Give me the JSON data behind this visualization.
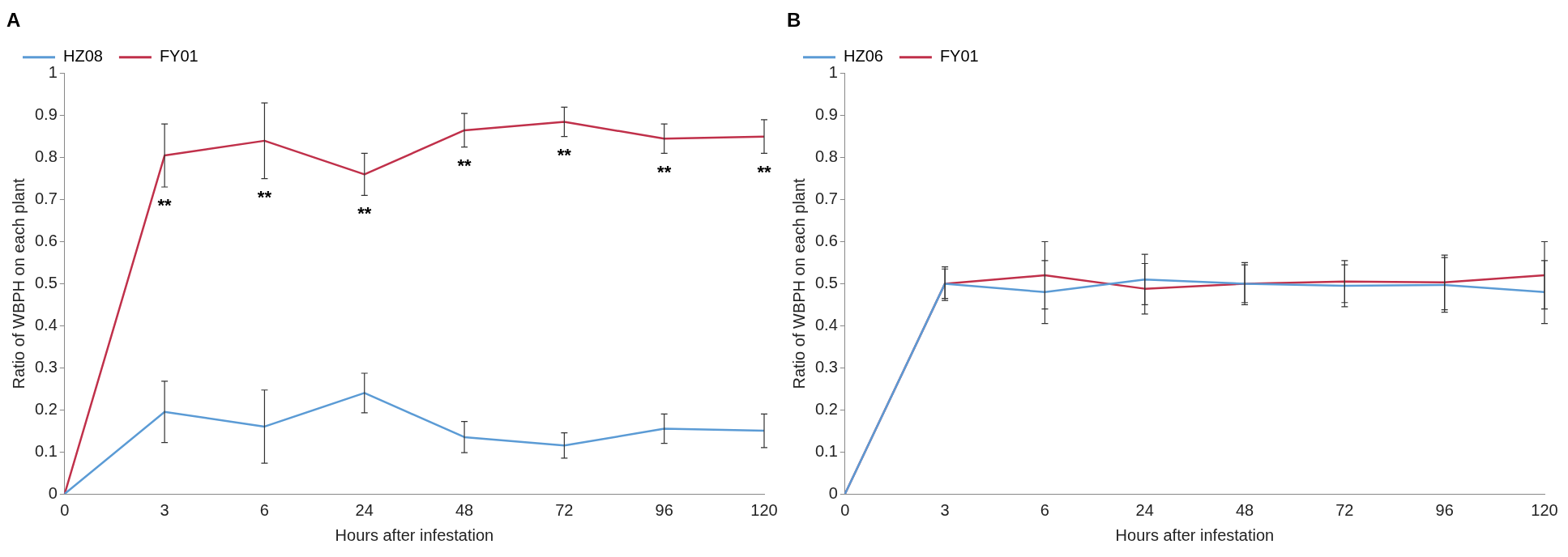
{
  "chart_data": [
    {
      "type": "line",
      "title": "A",
      "xlabel": "Hours after infestation",
      "ylabel": "Ratio of WBPH on each plant",
      "categories": [
        "0",
        "3",
        "6",
        "24",
        "48",
        "72",
        "96",
        "120"
      ],
      "ylim": [
        0,
        1
      ],
      "yticks": [
        0,
        0.1,
        0.2,
        0.3,
        0.4,
        0.5,
        0.6,
        0.7,
        0.8,
        0.9,
        1
      ],
      "grid": false,
      "legend": "top left",
      "marker": "none",
      "line_style": "solid",
      "series": [
        {
          "name": "HZ08",
          "color": "#5b9bd5",
          "values": [
            0,
            0.195,
            0.16,
            0.24,
            0.135,
            0.115,
            0.155,
            0.15
          ],
          "errors": [
            null,
            0.073,
            0.087,
            0.047,
            0.037,
            0.03,
            0.035,
            0.04
          ]
        },
        {
          "name": "FY01",
          "color": "#c0304a",
          "values": [
            0,
            0.805,
            0.84,
            0.76,
            0.865,
            0.885,
            0.845,
            0.85
          ],
          "errors": [
            null,
            0.075,
            0.09,
            0.05,
            0.04,
            0.035,
            0.035,
            0.04
          ]
        }
      ],
      "annotations": [
        "**",
        "**",
        "**",
        "**",
        "**",
        "**",
        "**"
      ]
    },
    {
      "type": "line",
      "title": "B",
      "xlabel": "Hours after infestation",
      "ylabel": "Ratio of WBPH on each plant",
      "categories": [
        "0",
        "3",
        "6",
        "24",
        "48",
        "72",
        "96",
        "120"
      ],
      "ylim": [
        0,
        1
      ],
      "yticks": [
        0,
        0.1,
        0.2,
        0.3,
        0.4,
        0.5,
        0.6,
        0.7,
        0.8,
        0.9,
        1
      ],
      "grid": false,
      "legend": "top left",
      "marker": "none",
      "line_style": "solid",
      "series": [
        {
          "name": "HZ06",
          "color": "#5b9bd5",
          "values": [
            0,
            0.5,
            0.48,
            0.51,
            0.5,
            0.495,
            0.497,
            0.48
          ],
          "errors": [
            null,
            0.04,
            0.075,
            0.06,
            0.05,
            0.05,
            0.065,
            0.075
          ]
        },
        {
          "name": "FY01",
          "color": "#c0304a",
          "values": [
            0,
            0.5,
            0.52,
            0.488,
            0.5,
            0.505,
            0.503,
            0.52
          ],
          "errors": [
            null,
            0.035,
            0.08,
            0.06,
            0.045,
            0.05,
            0.065,
            0.08
          ]
        }
      ]
    }
  ]
}
